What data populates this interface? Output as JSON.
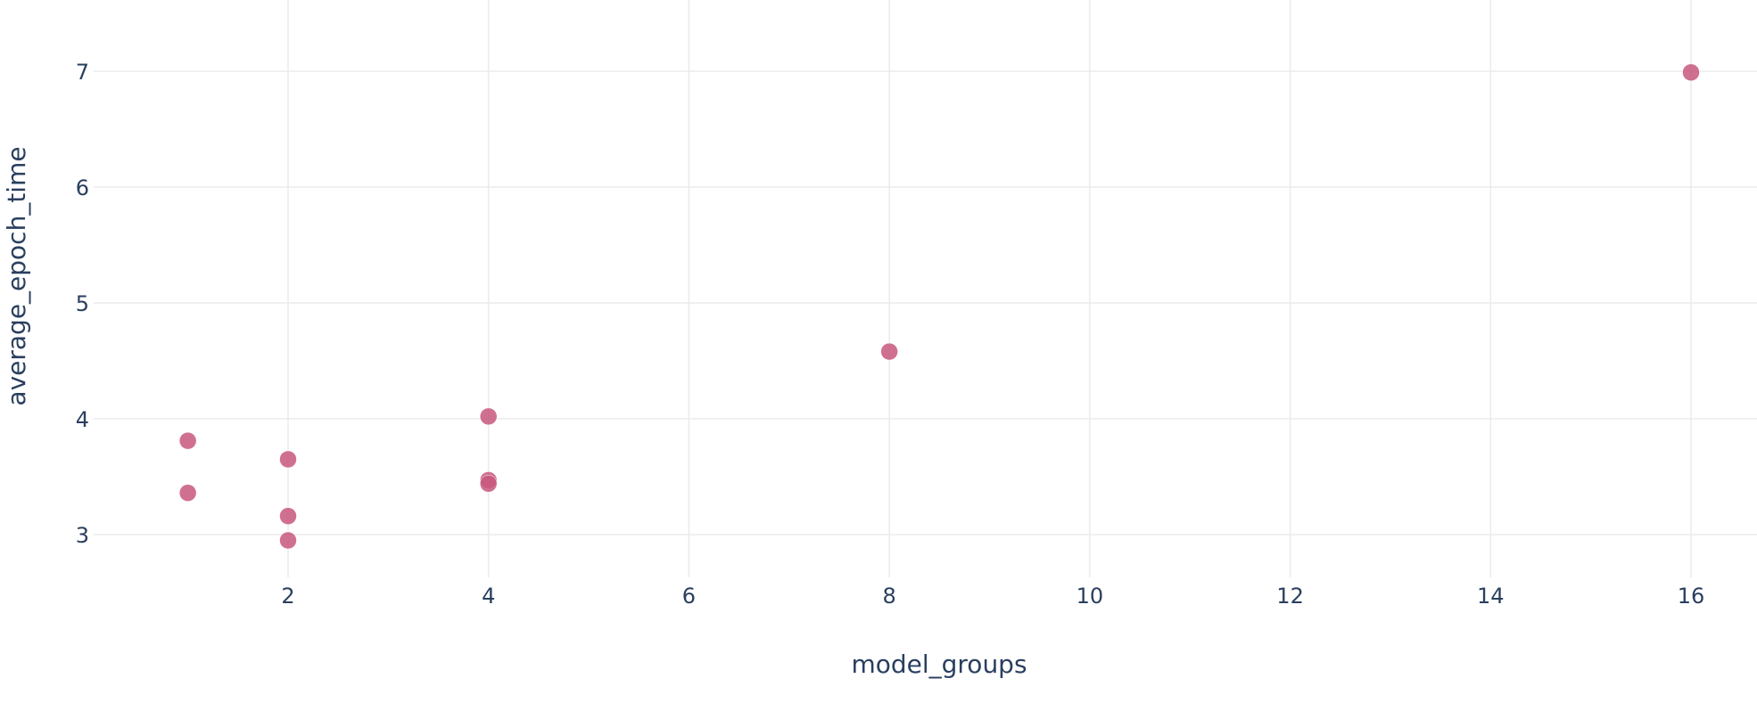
{
  "chart_data": {
    "type": "scatter",
    "title": "",
    "xlabel": "model_groups",
    "ylabel": "average_epoch_time",
    "xlim": [
      0,
      16.6
    ],
    "ylim": [
      2.6,
      7.6
    ],
    "grid": true,
    "marker_color": "#c8577e",
    "x_ticks": [
      2,
      4,
      6,
      8,
      10,
      12,
      14,
      16
    ],
    "y_ticks": [
      3,
      4,
      5,
      6,
      7
    ],
    "x_tick_labels": [
      "2",
      "4",
      "6",
      "8",
      "10",
      "12",
      "14",
      "16"
    ],
    "y_tick_labels": [
      "3",
      "4",
      "5",
      "6",
      "7"
    ],
    "points": [
      {
        "x": 1,
        "y": 3.81
      },
      {
        "x": 1,
        "y": 3.36
      },
      {
        "x": 2,
        "y": 3.65
      },
      {
        "x": 2,
        "y": 3.16
      },
      {
        "x": 2,
        "y": 2.95
      },
      {
        "x": 4,
        "y": 4.02
      },
      {
        "x": 4,
        "y": 3.47
      },
      {
        "x": 4,
        "y": 3.44
      },
      {
        "x": 8,
        "y": 4.58
      },
      {
        "x": 16,
        "y": 6.99
      }
    ]
  }
}
